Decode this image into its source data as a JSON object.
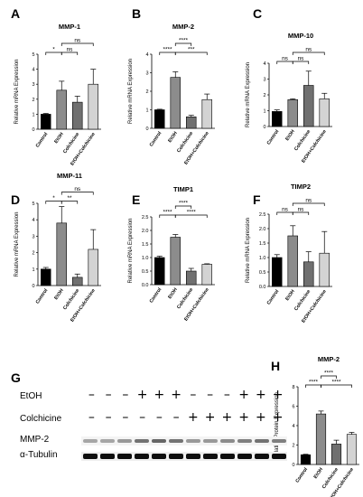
{
  "chart_data": [
    {
      "id": "A",
      "panel_letter": "A",
      "type": "bar",
      "title": "MMP-1",
      "ylabel": "Relative mRNA Expression",
      "ylim": [
        0,
        5
      ],
      "yticks": [
        0,
        1,
        2,
        3,
        4,
        5
      ],
      "categories": [
        "Control",
        "EtOH",
        "Colchicine",
        "EtOH+Colchicine"
      ],
      "values": [
        1.0,
        2.6,
        1.8,
        3.0
      ],
      "errors": [
        0.05,
        0.6,
        0.4,
        1.0
      ],
      "colors": [
        "#000000",
        "#8c8c8c",
        "#707070",
        "#d3d3d3"
      ],
      "brackets": [
        {
          "from": 0,
          "to": 1,
          "level": 0,
          "label": "*"
        },
        {
          "from": 1,
          "to": 2,
          "level": 0,
          "label": "ns"
        },
        {
          "from": 1,
          "to": 3,
          "level": 1,
          "label": "ns"
        }
      ]
    },
    {
      "id": "B",
      "panel_letter": "B",
      "type": "bar",
      "title": "MMP-2",
      "ylabel": "Relative mRNA Expression",
      "ylim": [
        0,
        4
      ],
      "yticks": [
        0,
        1,
        2,
        3,
        4
      ],
      "categories": [
        "Control",
        "EtOH",
        "Colchicine",
        "EtOH+Colchicine"
      ],
      "values": [
        1.0,
        2.75,
        0.62,
        1.55
      ],
      "errors": [
        0.03,
        0.3,
        0.08,
        0.3
      ],
      "colors": [
        "#000000",
        "#8c8c8c",
        "#707070",
        "#d3d3d3"
      ],
      "brackets": [
        {
          "from": 0,
          "to": 1,
          "level": 0,
          "label": "****"
        },
        {
          "from": 1,
          "to": 2,
          "level": 1,
          "label": "****"
        },
        {
          "from": 1,
          "to": 3,
          "level": 0,
          "label": "***"
        }
      ]
    },
    {
      "id": "C",
      "panel_letter": "C",
      "type": "bar",
      "title": "MMP-10",
      "ylabel": "Relative mRNA Expression",
      "ylim": [
        0,
        4
      ],
      "yticks": [
        0,
        1,
        2,
        3,
        4
      ],
      "categories": [
        "Control",
        "EtOH",
        "Colchicine",
        "EtOH+Colchicine"
      ],
      "values": [
        0.95,
        1.7,
        2.6,
        1.75
      ],
      "errors": [
        0.1,
        0.05,
        0.9,
        0.35
      ],
      "colors": [
        "#000000",
        "#8c8c8c",
        "#707070",
        "#d3d3d3"
      ],
      "brackets": [
        {
          "from": 0,
          "to": 1,
          "level": 0,
          "label": "ns"
        },
        {
          "from": 1,
          "to": 2,
          "level": 0,
          "label": "ns"
        },
        {
          "from": 1,
          "to": 3,
          "level": 1,
          "label": "ns"
        }
      ]
    },
    {
      "id": "D",
      "panel_letter": "D",
      "type": "bar",
      "title": "MMP-11",
      "ylabel": "Relative mRNA Expression",
      "ylim": [
        0,
        5
      ],
      "yticks": [
        0,
        1,
        2,
        3,
        4,
        5
      ],
      "categories": [
        "Control",
        "EtOH",
        "Colchicine",
        "EtOH+Colchicine"
      ],
      "values": [
        1.0,
        3.8,
        0.5,
        2.2
      ],
      "errors": [
        0.1,
        1.0,
        0.2,
        1.2
      ],
      "colors": [
        "#000000",
        "#8c8c8c",
        "#707070",
        "#d3d3d3"
      ],
      "brackets": [
        {
          "from": 0,
          "to": 1,
          "level": 0,
          "label": "*"
        },
        {
          "from": 1,
          "to": 2,
          "level": 0,
          "label": "**"
        },
        {
          "from": 1,
          "to": 3,
          "level": 1,
          "label": "ns"
        }
      ]
    },
    {
      "id": "E",
      "panel_letter": "E",
      "type": "bar",
      "title": "TIMP1",
      "ylabel": "Relative mRNA Expression",
      "ylim": [
        0,
        2.5
      ],
      "yticks": [
        0.0,
        0.5,
        1.0,
        1.5,
        2.0,
        2.5
      ],
      "categories": [
        "Control",
        "EtOH",
        "Colchicine",
        "EtOH+Colchicine"
      ],
      "values": [
        1.0,
        1.75,
        0.5,
        0.75
      ],
      "errors": [
        0.05,
        0.1,
        0.1,
        0.02
      ],
      "colors": [
        "#000000",
        "#8c8c8c",
        "#707070",
        "#d3d3d3"
      ],
      "brackets": [
        {
          "from": 0,
          "to": 1,
          "level": 0,
          "label": "****"
        },
        {
          "from": 1,
          "to": 2,
          "level": 1,
          "label": "****"
        },
        {
          "from": 1,
          "to": 3,
          "level": 0,
          "label": "****"
        }
      ]
    },
    {
      "id": "F",
      "panel_letter": "F",
      "type": "bar",
      "title": "TIMP2",
      "ylabel": "Relative mRNA Expression",
      "ylim": [
        0,
        2.5
      ],
      "yticks": [
        0.0,
        0.5,
        1.0,
        1.5,
        2.0,
        2.5
      ],
      "categories": [
        "Control",
        "EtOH",
        "Colchicine",
        "EtOH+Colchicine"
      ],
      "values": [
        1.0,
        1.75,
        0.85,
        1.15
      ],
      "errors": [
        0.1,
        0.35,
        0.35,
        0.75
      ],
      "colors": [
        "#000000",
        "#8c8c8c",
        "#707070",
        "#d3d3d3"
      ],
      "brackets": [
        {
          "from": 0,
          "to": 1,
          "level": 0,
          "label": "ns"
        },
        {
          "from": 1,
          "to": 2,
          "level": 0,
          "label": "ns"
        },
        {
          "from": 1,
          "to": 3,
          "level": 1,
          "label": "ns"
        }
      ]
    },
    {
      "id": "H",
      "panel_letter": "H",
      "type": "bar",
      "title": "MMP-2",
      "ylabel": "Relative Protein Expression",
      "ylim": [
        0,
        8
      ],
      "yticks": [
        0,
        2,
        4,
        6,
        8
      ],
      "categories": [
        "Control",
        "EtOH",
        "Colchicine",
        "EtOH+Colchicine"
      ],
      "values": [
        1.0,
        5.2,
        2.1,
        3.1
      ],
      "errors": [
        0.05,
        0.3,
        0.4,
        0.2
      ],
      "colors": [
        "#000000",
        "#8c8c8c",
        "#707070",
        "#d3d3d3"
      ],
      "brackets": [
        {
          "from": 0,
          "to": 1,
          "level": 0,
          "label": "****"
        },
        {
          "from": 1,
          "to": 2,
          "level": 1,
          "label": "****"
        },
        {
          "from": 1,
          "to": 3,
          "level": 0,
          "label": "****"
        }
      ]
    }
  ],
  "blot": {
    "panel_letter": "G",
    "etoh_label": "EtOH",
    "colchicine_label": "Colchicine",
    "mmp2_label": "MMP-2",
    "tubulin_label": "α-Tubulin",
    "etoh_signs": [
      "–",
      "–",
      "–",
      "+",
      "+",
      "+",
      "–",
      "–",
      "–",
      "+",
      "+",
      "+"
    ],
    "colchicine_signs": [
      "–",
      "–",
      "–",
      "–",
      "–",
      "–",
      "+",
      "+",
      "+",
      "+",
      "+",
      "+"
    ],
    "mmp2_band_intensity": [
      0.35,
      0.35,
      0.4,
      0.55,
      0.6,
      0.55,
      0.4,
      0.4,
      0.45,
      0.5,
      0.55,
      0.5
    ],
    "tubulin_band_intensity": [
      0.95,
      0.95,
      0.95,
      0.95,
      0.95,
      0.95,
      0.95,
      0.95,
      0.95,
      0.95,
      0.95,
      0.95
    ]
  }
}
